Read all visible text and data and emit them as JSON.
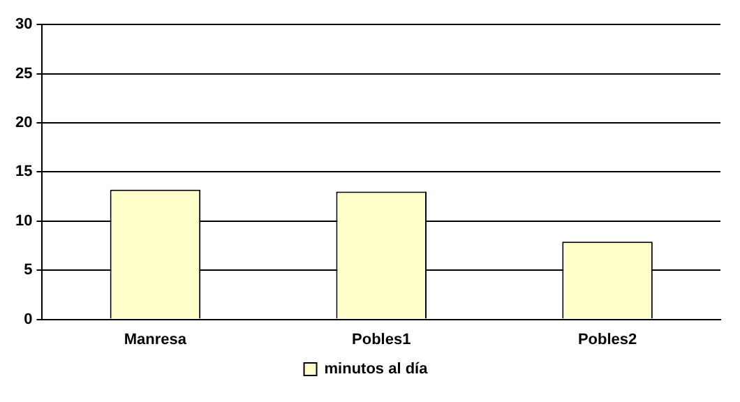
{
  "chart_data": {
    "type": "bar",
    "categories": [
      "Manresa",
      "Pobles1",
      "Pobles2"
    ],
    "series": [
      {
        "name": "minutos al día",
        "color": "#ffffcc",
        "values": [
          13.2,
          13.0,
          7.9
        ]
      }
    ],
    "ylim": [
      0,
      30
    ],
    "yticks": [
      0,
      5,
      10,
      15,
      20,
      25,
      30
    ],
    "grid": "y",
    "legend": "bottom"
  }
}
